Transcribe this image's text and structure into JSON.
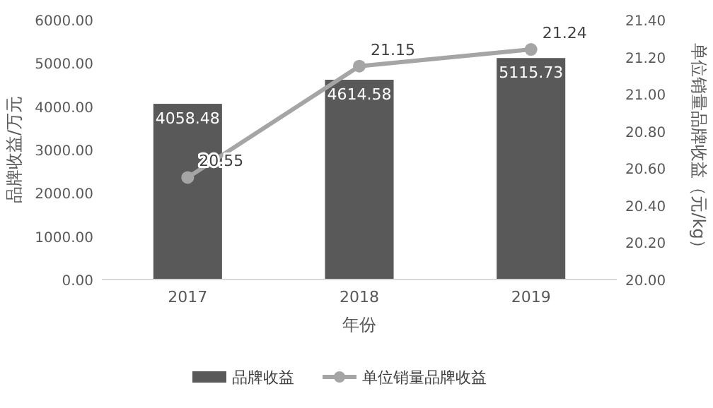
{
  "chart_data": {
    "type": "bar",
    "xlabel": "年份",
    "ylabel": "品牌收益/万元",
    "y2label": "单位销量品牌收益（元/kg）",
    "categories": [
      "2017",
      "2018",
      "2019"
    ],
    "series": [
      {
        "name": "品牌收益",
        "color": "#595959",
        "values": [
          4058.48,
          4614.58,
          5115.73
        ]
      },
      {
        "name": "单位销量品牌收益",
        "type": "line",
        "axis": "y2",
        "color": "#a5a5a5",
        "marker": "circle",
        "values": [
          20.55,
          21.15,
          21.24
        ]
      }
    ],
    "ylim": [
      0,
      6000
    ],
    "yticks": [
      {
        "value": 0,
        "label": "0.00"
      },
      {
        "value": 1000,
        "label": "1000.00"
      },
      {
        "value": 2000,
        "label": "2000.00"
      },
      {
        "value": 3000,
        "label": "3000.00"
      },
      {
        "value": 4000,
        "label": "4000.00"
      },
      {
        "value": 5000,
        "label": "5000.00"
      },
      {
        "value": 6000,
        "label": "6000.00"
      }
    ],
    "y2lim": [
      20,
      21.4
    ],
    "y2ticks": [
      {
        "value": 20,
        "label": "20.00"
      },
      {
        "value": 20.2,
        "label": "20.20"
      },
      {
        "value": 20.4,
        "label": "20.40"
      },
      {
        "value": 20.6,
        "label": "20.60"
      },
      {
        "value": 20.8,
        "label": "20.80"
      },
      {
        "value": 21,
        "label": "21.00"
      },
      {
        "value": 21.2,
        "label": "21.20"
      },
      {
        "value": 21.4,
        "label": "21.40"
      }
    ],
    "data_labels": true,
    "grid": false,
    "legend": "bottom"
  }
}
